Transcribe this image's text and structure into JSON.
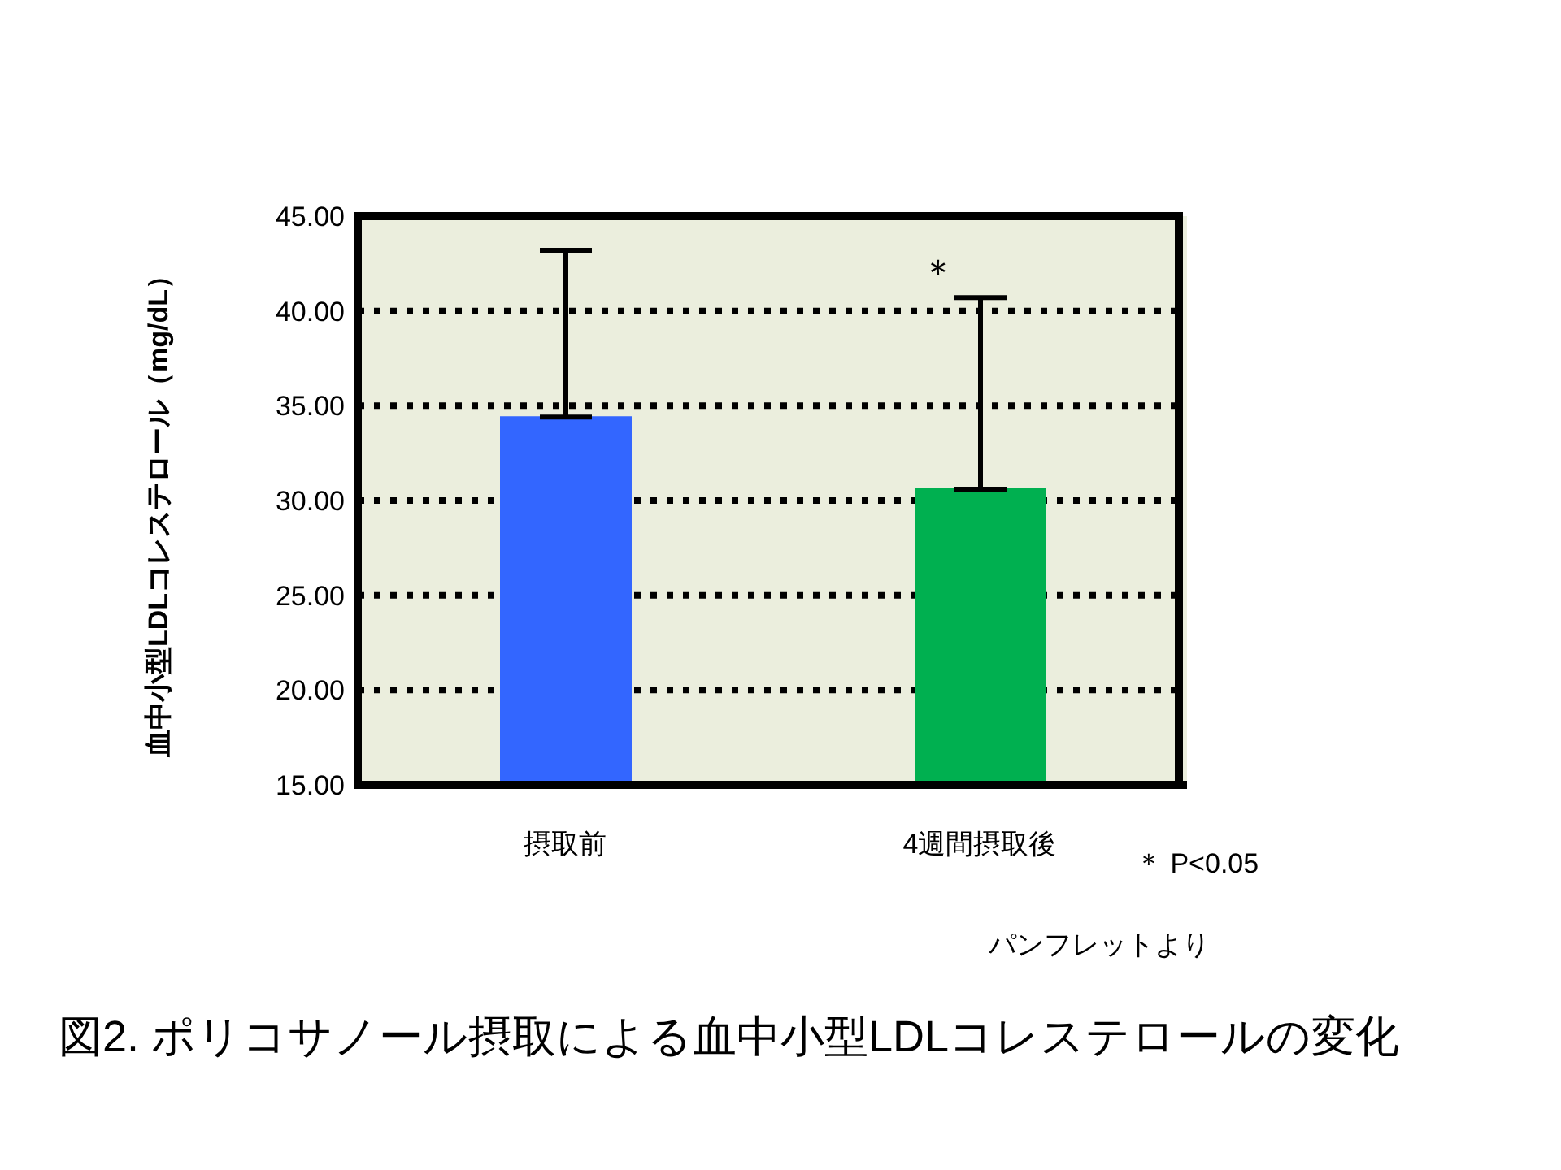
{
  "chart_data": {
    "type": "bar",
    "title": "図2. ポリコサノール摂取による血中小型LDLコレステロールの変化",
    "ylabel": "血中小型LDLコレステロール（mg/dL）",
    "categories": [
      "摂取前",
      "4週間摂取後"
    ],
    "values": [
      34.4,
      30.6
    ],
    "colors": [
      "#3366ff",
      "#00b050"
    ],
    "errors": [
      [
        34.4,
        43.2
      ],
      [
        30.6,
        40.7
      ]
    ],
    "ylim": [
      15,
      45
    ],
    "yticks": [
      {
        "value": 15,
        "label": "15.00"
      },
      {
        "value": 20,
        "label": "20.00"
      },
      {
        "value": 25,
        "label": "25.00"
      },
      {
        "value": 30,
        "label": "30.00"
      },
      {
        "value": 35,
        "label": "35.00"
      },
      {
        "value": 40,
        "label": "40.00"
      },
      {
        "value": 45,
        "label": "45.00"
      }
    ],
    "grid": "y",
    "legend": false,
    "annotations": [
      "＊",
      "＊ P<0.05",
      "パンフレットより"
    ]
  }
}
